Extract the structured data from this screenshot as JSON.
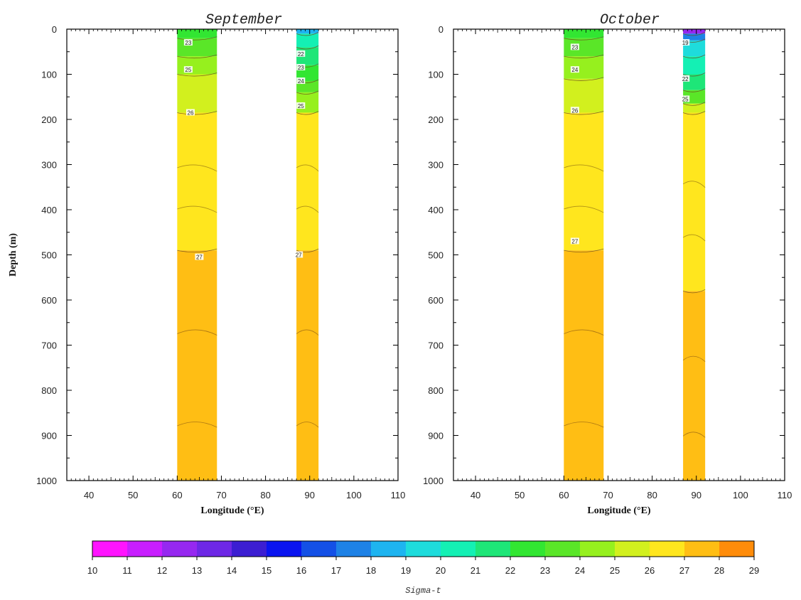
{
  "chart_data": [
    {
      "type": "heatmap",
      "title": "September",
      "xlabel": "Longitude (°E)",
      "ylabel": "Depth (m)",
      "xlim": [
        35,
        110
      ],
      "ylim": [
        0,
        1000
      ],
      "y_inverted": true,
      "xticks": [
        "40",
        "50",
        "60",
        "70",
        "80",
        "90",
        "100",
        "110"
      ],
      "yticks": [
        "0",
        "100",
        "200",
        "300",
        "400",
        "500",
        "600",
        "700",
        "800",
        "900",
        "1000"
      ],
      "data_columns": [
        {
          "lon_range": [
            60,
            69
          ],
          "layers": [
            {
              "depth_range": [
                0,
                20
              ],
              "sigma_t": 22.5
            },
            {
              "depth_range": [
                20,
                60
              ],
              "sigma_t": 23.5
            },
            {
              "depth_range": [
                60,
                100
              ],
              "sigma_t": 24.5
            },
            {
              "depth_range": [
                100,
                185
              ],
              "sigma_t": 25.5
            },
            {
              "depth_range": [
                185,
                490
              ],
              "sigma_t": 26.5
            },
            {
              "depth_range": [
                490,
                1000
              ],
              "sigma_t": 27.5
            }
          ],
          "contour_labels": [
            {
              "text": "23",
              "lon": 62.5,
              "depth": 30
            },
            {
              "text": "25",
              "lon": 62.5,
              "depth": 90
            },
            {
              "text": "26",
              "lon": 63,
              "depth": 185
            },
            {
              "text": "27",
              "lon": 65,
              "depth": 505
            }
          ]
        },
        {
          "lon_range": [
            87,
            92
          ],
          "layers": [
            {
              "depth_range": [
                0,
                10
              ],
              "sigma_t": 18.5
            },
            {
              "depth_range": [
                10,
                40
              ],
              "sigma_t": 20.5
            },
            {
              "depth_range": [
                40,
                80
              ],
              "sigma_t": 21.5
            },
            {
              "depth_range": [
                80,
                115
              ],
              "sigma_t": 22.5
            },
            {
              "depth_range": [
                115,
                140
              ],
              "sigma_t": 23.5
            },
            {
              "depth_range": [
                140,
                185
              ],
              "sigma_t": 24.5
            },
            {
              "depth_range": [
                185,
                490
              ],
              "sigma_t": 26.5
            },
            {
              "depth_range": [
                490,
                1000
              ],
              "sigma_t": 27.5
            }
          ],
          "contour_labels": [
            {
              "text": "22",
              "lon": 88,
              "depth": 55
            },
            {
              "text": "23",
              "lon": 88,
              "depth": 85
            },
            {
              "text": "24",
              "lon": 88,
              "depth": 115
            },
            {
              "text": "25",
              "lon": 88,
              "depth": 170
            },
            {
              "text": "27",
              "lon": 87.5,
              "depth": 500
            }
          ]
        }
      ]
    },
    {
      "type": "heatmap",
      "title": "October",
      "xlabel": "Longitude (°E)",
      "ylabel": "",
      "xlim": [
        35,
        110
      ],
      "ylim": [
        0,
        1000
      ],
      "y_inverted": true,
      "xticks": [
        "40",
        "50",
        "60",
        "70",
        "80",
        "90",
        "100",
        "110"
      ],
      "yticks": [
        "0",
        "100",
        "200",
        "300",
        "400",
        "500",
        "600",
        "700",
        "800",
        "900",
        "1000"
      ],
      "data_columns": [
        {
          "lon_range": [
            60,
            69
          ],
          "layers": [
            {
              "depth_range": [
                0,
                20
              ],
              "sigma_t": 22.5
            },
            {
              "depth_range": [
                20,
                60
              ],
              "sigma_t": 23.5
            },
            {
              "depth_range": [
                60,
                110
              ],
              "sigma_t": 24.5
            },
            {
              "depth_range": [
                110,
                185
              ],
              "sigma_t": 25.5
            },
            {
              "depth_range": [
                185,
                490
              ],
              "sigma_t": 26.5
            },
            {
              "depth_range": [
                490,
                1000
              ],
              "sigma_t": 27.5
            }
          ],
          "contour_labels": [
            {
              "text": "23",
              "lon": 62.5,
              "depth": 40
            },
            {
              "text": "24",
              "lon": 62.5,
              "depth": 90
            },
            {
              "text": "26",
              "lon": 62.5,
              "depth": 180
            },
            {
              "text": "27",
              "lon": 62.5,
              "depth": 470
            }
          ]
        },
        {
          "lon_range": [
            87,
            92
          ],
          "layers": [
            {
              "depth_range": [
                0,
                10
              ],
              "sigma_t": 12.5
            },
            {
              "depth_range": [
                10,
                25
              ],
              "sigma_t": 17.5
            },
            {
              "depth_range": [
                25,
                60
              ],
              "sigma_t": 19.5
            },
            {
              "depth_range": [
                60,
                100
              ],
              "sigma_t": 20.5
            },
            {
              "depth_range": [
                100,
                135
              ],
              "sigma_t": 21.5
            },
            {
              "depth_range": [
                135,
                165
              ],
              "sigma_t": 23.5
            },
            {
              "depth_range": [
                165,
                185
              ],
              "sigma_t": 25.5
            },
            {
              "depth_range": [
                185,
                580
              ],
              "sigma_t": 26.5
            },
            {
              "depth_range": [
                580,
                1000
              ],
              "sigma_t": 27.5
            }
          ],
          "contour_labels": [
            {
              "text": "19",
              "lon": 87.5,
              "depth": 30
            },
            {
              "text": "22",
              "lon": 87.5,
              "depth": 110
            },
            {
              "text": "25",
              "lon": 87.5,
              "depth": 155
            }
          ]
        }
      ]
    }
  ],
  "colorbar": {
    "label": "Sigma-t",
    "tick_labels": [
      "10",
      "11",
      "12",
      "13",
      "14",
      "15",
      "16",
      "17",
      "18",
      "19",
      "20",
      "21",
      "22",
      "23",
      "24",
      "25",
      "26",
      "27",
      "28",
      "29"
    ],
    "range": [
      10,
      29
    ],
    "colors": [
      "#ff14ff",
      "#c81eff",
      "#9628f0",
      "#6e28e6",
      "#3c1ed2",
      "#0a14f0",
      "#1450e6",
      "#1e82e6",
      "#1eb4f0",
      "#1edcdc",
      "#14f0b4",
      "#1ee678",
      "#32e632",
      "#5ae628",
      "#96f01e",
      "#d2f01e",
      "#ffe61e",
      "#ffbe14",
      "#ff8c0a",
      "#ff4614"
    ]
  }
}
